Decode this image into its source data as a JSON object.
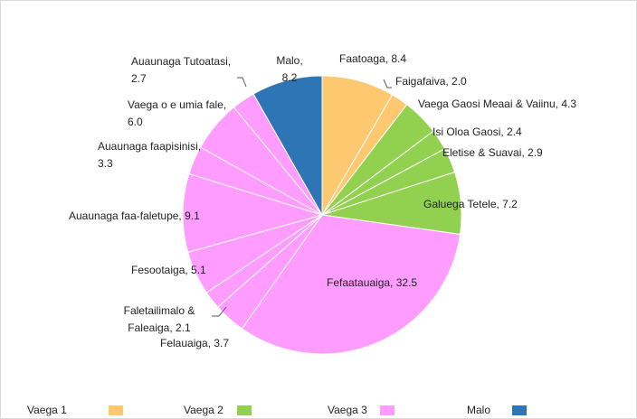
{
  "chart_data": {
    "type": "pie",
    "categories": [
      "Faatoaga",
      "Faigafaiva",
      "Vaega Gaosi Meaai & Vaiinu",
      "Isi Oloa Gaosi",
      "Eletise & Suavai",
      "Galuega Tetele",
      "Fefaatauaiga",
      "Felauaiga",
      "Faletailimalo & Faleaiga",
      "Fesootaiga",
      "Auaunaga faa-faletupe",
      "Auaunaga faapisinisi",
      "Vaega o e umia fale",
      "Auaunaga Tutoatasi",
      "Malo"
    ],
    "values": [
      8.4,
      2.0,
      4.3,
      2.4,
      2.9,
      7.2,
      32.5,
      3.7,
      2.1,
      5.1,
      9.1,
      3.3,
      6.0,
      2.7,
      8.2
    ],
    "labels": [
      [
        "Faatoaga, 8.4"
      ],
      [
        "Faigafaiva, 2.0"
      ],
      [
        "Vaega Gaosi Meaai & Vaiinu, 4.3"
      ],
      [
        "Isi Oloa Gaosi, 2.4"
      ],
      [
        "Eletise & Suavai, 2.9"
      ],
      [
        "Galuega Tetele, 7.2"
      ],
      [
        "Fefaatauaiga, 32.5"
      ],
      [
        "Felauaiga, 3.7"
      ],
      [
        "Faletailimalo &",
        "Faleaiga, 2.1"
      ],
      [
        "Fesootaiga, 5.1"
      ],
      [
        "Auaunaga faa-faletupe, 9.1"
      ],
      [
        "Auaunaga faapisinisi,",
        "3.3"
      ],
      [
        "Vaega o e umia fale,",
        "6.0"
      ],
      [
        "Auaunaga Tutoatasi,",
        "2.7"
      ],
      [
        "Malo,",
        "8.2"
      ]
    ],
    "groups": [
      {
        "name": "Vaega 1",
        "color": "#fdc86f"
      },
      {
        "name": "Vaega 2",
        "color": "#92d050"
      },
      {
        "name": "Vaega 3",
        "color": "#ff9cff"
      },
      {
        "name": "Malo",
        "color": "#2e75b6"
      }
    ],
    "slice_groups": [
      0,
      0,
      1,
      1,
      1,
      1,
      2,
      2,
      2,
      2,
      2,
      2,
      2,
      2,
      3
    ],
    "legend": "bottom"
  }
}
